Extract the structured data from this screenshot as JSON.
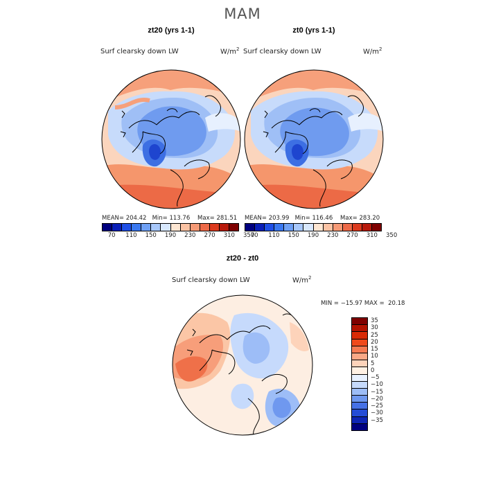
{
  "title": "MAM",
  "panels": [
    {
      "title": "zt20 (yrs 1-1)",
      "variable": "Surf clearsky down LW",
      "units_base": "W/m",
      "units_exp": "2",
      "mean_label": "MEAN=",
      "mean": "204.42",
      "min_label": "Min=",
      "min": "113.76",
      "max_label": "Max=",
      "max": "281.51"
    },
    {
      "title": "zt0 (yrs 1-1)",
      "variable": "Surf clearsky down LW",
      "units_base": "W/m",
      "units_exp": "2",
      "mean_label": "MEAN=",
      "mean": "203.99",
      "min_label": "Min=",
      "min": "116.46",
      "max_label": "Max=",
      "max": "283.20"
    }
  ],
  "diff_panel": {
    "title": "zt20 - zt0",
    "variable": "Surf clearsky down LW",
    "units_base": "W/m",
    "units_exp": "2",
    "min_label": "MIN =",
    "min": "−15.97",
    "max_label": "MAX =",
    "max": "20.18"
  },
  "abs_colorbar": {
    "colors": [
      "#00007f",
      "#0a1fb8",
      "#1f4fe6",
      "#3a78f0",
      "#6ea0f5",
      "#a8c8fb",
      "#d8e8fd",
      "#fde6d2",
      "#fbc3a4",
      "#f69a76",
      "#ee6a48",
      "#dc3a1e",
      "#b81a0c",
      "#7f0000"
    ],
    "tick_labels": [
      "70",
      "110",
      "150",
      "190",
      "230",
      "270",
      "310",
      "350"
    ]
  },
  "diff_colorbar": {
    "colors": [
      "#7f0000",
      "#b31200",
      "#d92a05",
      "#f04a1c",
      "#f57a52",
      "#f9a886",
      "#fdd3ba",
      "#fff1e4",
      "#e8f1ff",
      "#c6dafc",
      "#9dbdf7",
      "#6f98ef",
      "#4671e6",
      "#244cd6",
      "#0e25b4",
      "#000080"
    ],
    "tick_labels": [
      "35",
      "30",
      "25",
      "20",
      "15",
      "10",
      "5",
      "0",
      "−5",
      "−10",
      "−15",
      "−20",
      "−25",
      "−30",
      "−35"
    ]
  }
}
